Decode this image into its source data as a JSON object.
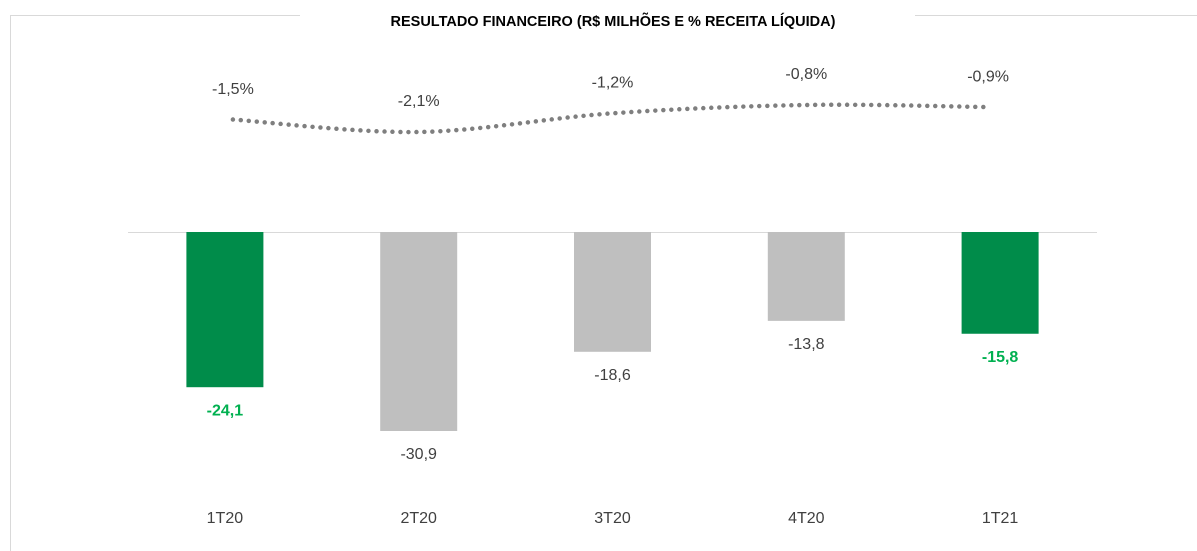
{
  "chart_data": {
    "type": "combo",
    "title": "RESULTADO FINANCEIRO (R$ MILHÕES E % RECEITA LÍQUIDA)",
    "categories": [
      "1T20",
      "2T20",
      "3T20",
      "4T20",
      "1T21"
    ],
    "series": [
      {
        "type": "bar",
        "values": [
          -24.1,
          -30.9,
          -18.6,
          -13.8,
          -15.8
        ],
        "value_labels": [
          "-24,1",
          "-30,9",
          "-18,6",
          "-13,8",
          "-15,8"
        ],
        "color": "#bfbfbf",
        "highlight": [
          true,
          false,
          false,
          false,
          true
        ],
        "highlight_color": "#008c4a",
        "highlight_label_color": "#00b050"
      },
      {
        "type": "line",
        "axis": "y2",
        "values": [
          -1.5,
          -2.1,
          -1.2,
          -0.8,
          -0.9
        ],
        "value_labels": [
          "-1,5%",
          "-2,1%",
          "-1,2%",
          "-0,8%",
          "-0,9%"
        ],
        "color": "#7f7f7f",
        "style": "dotted"
      }
    ]
  }
}
